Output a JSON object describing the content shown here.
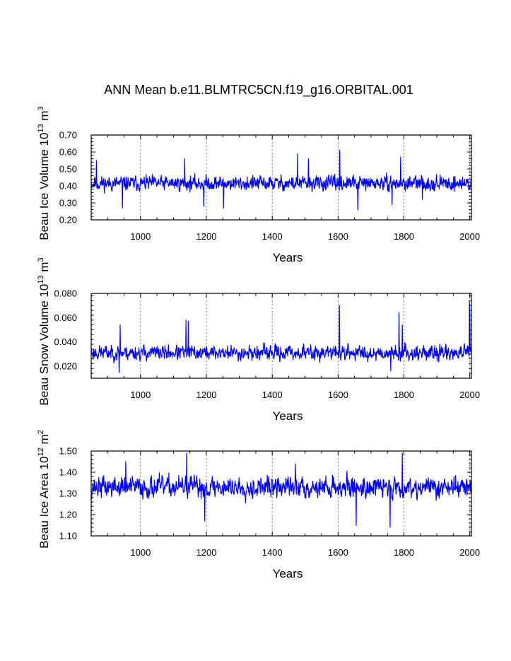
{
  "figure": {
    "title": "ANN Mean b.e11.BLMTRC5CN.f19_g16.ORBITAL.001"
  },
  "chart_data": [
    {
      "type": "line",
      "ylabel_main": "Beau Ice Volume 10",
      "ylabel_exp": "13",
      "ylabel_unit": "m",
      "ylabel_unit_exp": "3",
      "xlabel": "Years",
      "xlim": [
        850,
        2005
      ],
      "ylim": [
        0.2,
        0.7
      ],
      "xticks": [
        1000,
        1200,
        1400,
        1600,
        1800,
        2000
      ],
      "xtick_labels": [
        "1000",
        "1200",
        "1400",
        "1600",
        "1800",
        "2000"
      ],
      "yticks": [
        0.2,
        0.3,
        0.4,
        0.5,
        0.6,
        0.7
      ],
      "ytick_labels": [
        "0.20",
        "0.30",
        "0.40",
        "0.50",
        "0.60",
        "0.70"
      ],
      "grid_x": true,
      "line_color": "#0000ff",
      "series": {
        "name": "Beau Ice Volume",
        "x_start": 850,
        "x_step": 1,
        "baseline": 0.415,
        "amplitude": 0.12,
        "seed": 11,
        "spikes": [
          [
            866,
            0.55
          ],
          [
            945,
            0.27
          ],
          [
            1134,
            0.56
          ],
          [
            1192,
            0.28
          ],
          [
            1252,
            0.27
          ],
          [
            1477,
            0.59
          ],
          [
            1510,
            0.56
          ],
          [
            1605,
            0.61
          ],
          [
            1660,
            0.26
          ],
          [
            1764,
            0.29
          ],
          [
            1790,
            0.57
          ],
          [
            1856,
            0.32
          ]
        ]
      }
    },
    {
      "type": "line",
      "ylabel_main": "Beau Snow Volume 10",
      "ylabel_exp": "13",
      "ylabel_unit": "m",
      "ylabel_unit_exp": "3",
      "xlabel": "Years",
      "xlim": [
        850,
        2005
      ],
      "ylim": [
        0.01,
        0.08
      ],
      "xticks": [
        1000,
        1200,
        1400,
        1600,
        1800,
        2000
      ],
      "xtick_labels": [
        "1000",
        "1200",
        "1400",
        "1600",
        "1800",
        "2000"
      ],
      "yticks": [
        0.02,
        0.04,
        0.06,
        0.08
      ],
      "ytick_labels": [
        "0.020",
        "0.040",
        "0.060",
        "0.080"
      ],
      "grid_x": true,
      "line_color": "#0000ff",
      "series": {
        "name": "Beau Snow Volume",
        "x_start": 850,
        "x_step": 1,
        "baseline": 0.031,
        "amplitude": 0.017,
        "seed": 23,
        "spikes": [
          [
            1138,
            0.058
          ],
          [
            1604,
            0.07
          ],
          [
            1760,
            0.016
          ],
          [
            1785,
            0.064
          ],
          [
            1795,
            0.054
          ],
          [
            1999,
            0.073
          ],
          [
            2000,
            0.065
          ],
          [
            1145,
            0.057
          ],
          [
            938,
            0.054
          ],
          [
            935,
            0.015
          ]
        ]
      }
    },
    {
      "type": "line",
      "ylabel_main": "Beau Ice Area 10",
      "ylabel_exp": "12",
      "ylabel_unit": "m",
      "ylabel_unit_exp": "2",
      "xlabel": "Years",
      "xlim": [
        850,
        2005
      ],
      "ylim": [
        1.1,
        1.5
      ],
      "xticks": [
        1000,
        1200,
        1400,
        1600,
        1800,
        2000
      ],
      "xtick_labels": [
        "1000",
        "1200",
        "1400",
        "1600",
        "1800",
        "2000"
      ],
      "yticks": [
        1.1,
        1.2,
        1.3,
        1.4,
        1.5
      ],
      "ytick_labels": [
        "1.10",
        "1.20",
        "1.30",
        "1.40",
        "1.50"
      ],
      "grid_x": true,
      "line_color": "#0000ff",
      "series": {
        "name": "Beau Ice Area",
        "x_start": 850,
        "x_step": 1,
        "baseline": 1.33,
        "amplitude": 0.14,
        "seed": 37,
        "spikes": [
          [
            1140,
            1.49
          ],
          [
            1195,
            1.17
          ],
          [
            1655,
            1.15
          ],
          [
            1758,
            1.14
          ],
          [
            1795,
            1.49
          ],
          [
            1470,
            1.44
          ],
          [
            955,
            1.45
          ]
        ]
      }
    }
  ]
}
